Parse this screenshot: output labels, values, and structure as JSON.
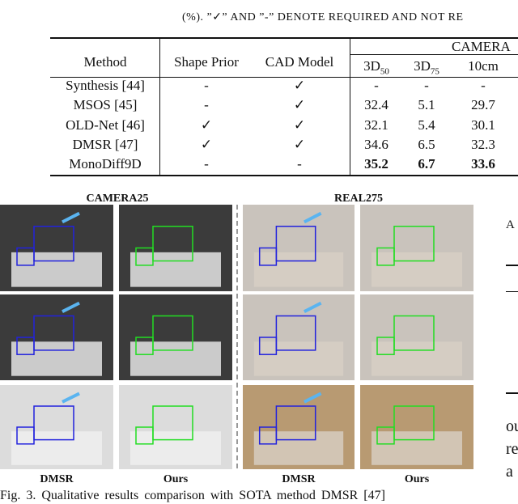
{
  "caption_top": "(%). ”✓” AND ”-” DENOTE REQUIRED AND NOT RE",
  "table": {
    "headers": [
      "Method",
      "Shape Prior",
      "CAD Model"
    ],
    "group": "CAMERA",
    "subheaders": [
      {
        "main": "3D",
        "sub": "50"
      },
      {
        "main": "3D",
        "sub": "75"
      },
      {
        "main": "10cm"
      }
    ],
    "rows": [
      [
        "Synthesis [44]",
        "-",
        "✓",
        "-",
        "-",
        "-"
      ],
      [
        "MSOS [45]",
        "-",
        "✓",
        "32.4",
        "5.1",
        "29.7"
      ],
      [
        "OLD-Net [46]",
        "✓",
        "✓",
        "32.1",
        "5.4",
        "30.1"
      ],
      [
        "DMSR [47]",
        "✓",
        "✓",
        "34.6",
        "6.5",
        "32.3"
      ],
      [
        "MonoDiff9D",
        "-",
        "-",
        "35.2",
        "6.7",
        "33.6"
      ]
    ]
  },
  "figure": {
    "group_labels": [
      "CAMERA25",
      "REAL275"
    ],
    "column_labels": [
      "DMSR",
      "Ours",
      "DMSR",
      "Ours"
    ],
    "caption": "Fig. 3.   Qualitative results comparison with SOTA method DMSR [47]"
  },
  "right_column": [
    "A",
    "ou",
    "re",
    "a"
  ]
}
